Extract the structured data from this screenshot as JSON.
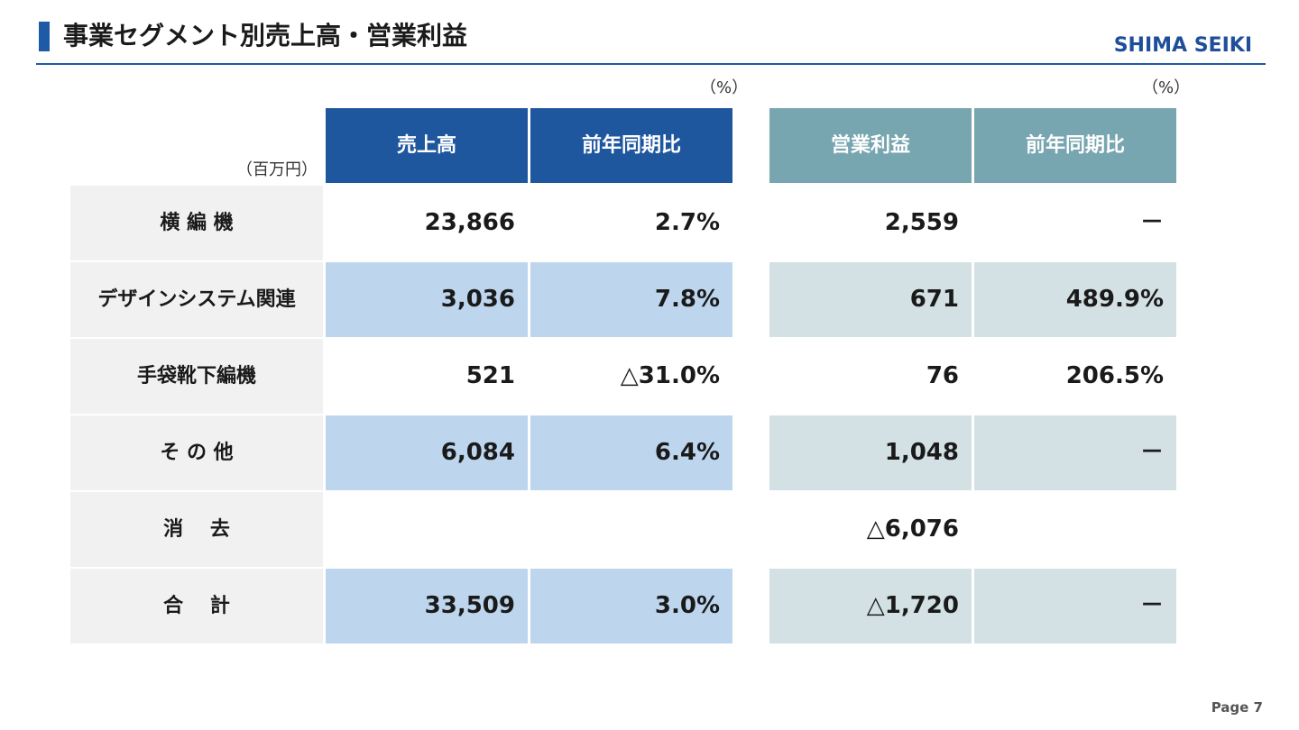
{
  "header": {
    "title": "事業セグメント別売上高・営業利益",
    "logo_text": "SHIMA SEIKI"
  },
  "units": {
    "pct_left": "（%）",
    "pct_right": "（%）",
    "million_yen": "（百万円）"
  },
  "columns": {
    "sales": "売上高",
    "sales_yoy": "前年同期比",
    "op_income": "営業利益",
    "op_yoy": "前年同期比"
  },
  "rows": [
    {
      "label": "横 編 機",
      "sales": "23,866",
      "sales_yoy": "2.7%",
      "op_income": "2,559",
      "op_yoy": "－"
    },
    {
      "label": "デザインシステム関連",
      "sales": "3,036",
      "sales_yoy": "7.8%",
      "op_income": "671",
      "op_yoy": "489.9%"
    },
    {
      "label": "手袋靴下編機",
      "sales": "521",
      "sales_yoy": "△31.0%",
      "op_income": "76",
      "op_yoy": "206.5%"
    },
    {
      "label": "そ の 他",
      "sales": "6,084",
      "sales_yoy": "6.4%",
      "op_income": "1,048",
      "op_yoy": "－"
    },
    {
      "label": "消　 去",
      "sales": "",
      "sales_yoy": "",
      "op_income": "△6,076",
      "op_yoy": ""
    },
    {
      "label": "合　 計",
      "sales": "33,509",
      "sales_yoy": "3.0%",
      "op_income": "△1,720",
      "op_yoy": "－"
    }
  ],
  "colors": {
    "accent_blue": "#1f579f",
    "header_teal": "#77a5b0",
    "row_blue": "#bdd6ee",
    "row_teal": "#d3e1e4",
    "label_gray": "#f1f1f1"
  },
  "footer": {
    "page": "Page 7"
  }
}
